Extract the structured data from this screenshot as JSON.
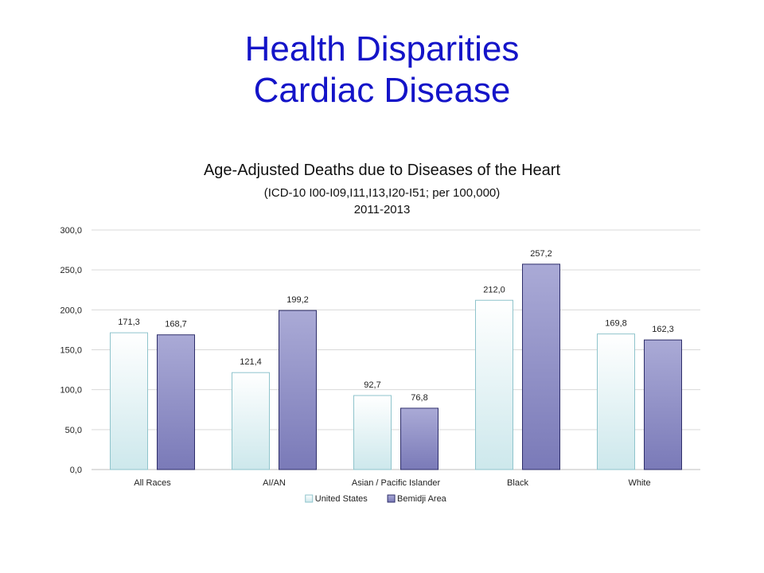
{
  "slide": {
    "title_line1": "Health Disparities",
    "title_line2": "Cardiac Disease"
  },
  "chart_data": {
    "type": "bar",
    "title": "Age-Adjusted  Deaths due to Diseases  of the Heart",
    "subtitle_line1": "(ICD-10  I00-I09,I11,I13,I20-I51; per 100,000)",
    "subtitle_line2": "2011-2013",
    "categories": [
      "All Races",
      "AI/AN",
      "Asian / Pacific Islander",
      "Black",
      "White"
    ],
    "series": [
      {
        "name": "United States",
        "values": [
          171.3,
          121.4,
          92.7,
          212.0,
          169.8
        ],
        "labels": [
          "171,3",
          "121,4",
          "92,7",
          "212,0",
          "169,8"
        ],
        "fill_top": "#ffffff",
        "fill_bottom": "#cde8ec",
        "stroke": "#8fc4cc"
      },
      {
        "name": "Bemidji Area",
        "values": [
          168.7,
          199.2,
          76.8,
          257.2,
          162.3
        ],
        "labels": [
          "168,7",
          "199,2",
          "76,8",
          "257,2",
          "162,3"
        ],
        "fill_top": "#aaaad6",
        "fill_bottom": "#7a7ab8",
        "stroke": "#2e2e6a"
      }
    ],
    "y_ticks": [
      0,
      50,
      100,
      150,
      200,
      250,
      300
    ],
    "y_tick_labels": [
      "0,0",
      "50,0",
      "100,0",
      "150,0",
      "200,0",
      "250,0",
      "300,0"
    ],
    "ylim": [
      0,
      300
    ],
    "grid": true,
    "legend_position": "bottom",
    "xlabel": "",
    "ylabel": ""
  }
}
